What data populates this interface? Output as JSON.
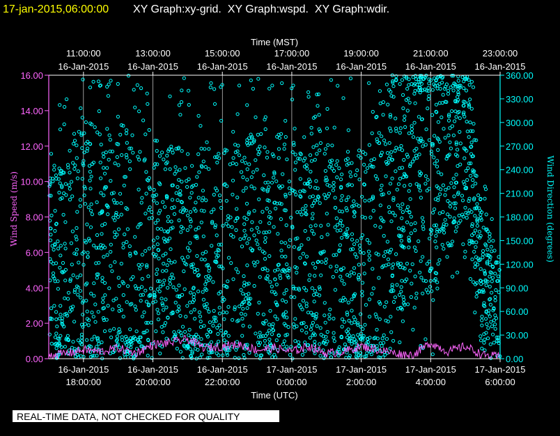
{
  "header": {
    "timestamp": "17-jan-2015,06:00:00",
    "graph_titles": "XY Graph:xy-grid.  XY Graph:wspd.  XY Graph:wdir."
  },
  "footer": {
    "disclaimer": "REAL-TIME DATA, NOT CHECKED FOR QUALITY"
  },
  "colors": {
    "background": "#000000",
    "header_timestamp": "#ffff00",
    "text": "#ffffff",
    "wind_speed": "#ff66ff",
    "wind_direction": "#00ffff",
    "grid": "#ffffff"
  },
  "chart_data": {
    "type": "scatter",
    "title": "",
    "x_top_label": "Time (MST)",
    "x_bottom_label": "Time (UTC)",
    "ylabel_left": "Wind Speed (m/s)",
    "ylabel_right": "Wind Direction (degrees)",
    "ylim_left": [
      0,
      16
    ],
    "ylim_right": [
      0,
      360
    ],
    "xlim_hours_utc": [
      17.0,
      30.0
    ],
    "grid": true,
    "top_ticks": [
      {
        "time": "11:00:00",
        "date": "16-Jan-2015"
      },
      {
        "time": "13:00:00",
        "date": "16-Jan-2015"
      },
      {
        "time": "15:00:00",
        "date": "16-Jan-2015"
      },
      {
        "time": "17:00:00",
        "date": "16-Jan-2015"
      },
      {
        "time": "19:00:00",
        "date": "16-Jan-2015"
      },
      {
        "time": "21:00:00",
        "date": "16-Jan-2015"
      },
      {
        "time": "23:00:00",
        "date": "16-Jan-2015"
      }
    ],
    "bottom_ticks": [
      {
        "date": "16-Jan-2015",
        "time": "18:00:00"
      },
      {
        "date": "16-Jan-2015",
        "time": "20:00:00"
      },
      {
        "date": "16-Jan-2015",
        "time": "22:00:00"
      },
      {
        "date": "17-Jan-2015",
        "time": "0:00:00"
      },
      {
        "date": "17-Jan-2015",
        "time": "2:00:00"
      },
      {
        "date": "17-Jan-2015",
        "time": "4:00:00"
      },
      {
        "date": "17-Jan-2015",
        "time": "6:00:00"
      }
    ],
    "left_ticks": [
      "0.00",
      "2.00",
      "4.00",
      "6.00",
      "8.00",
      "10.00",
      "12.00",
      "14.00",
      "16.00"
    ],
    "right_ticks": [
      "0.00",
      "30.00",
      "60.00",
      "90.00",
      "120.00",
      "150.00",
      "180.00",
      "210.00",
      "240.00",
      "270.00",
      "300.00",
      "330.00",
      "360.00"
    ],
    "series": [
      {
        "name": "wspd",
        "axis": "left",
        "style": "line",
        "color": "#ff66ff",
        "x": [
          17.0,
          17.5,
          18.0,
          18.5,
          19.0,
          19.5,
          20.0,
          20.5,
          21.0,
          21.5,
          22.0,
          22.5,
          23.0,
          23.5,
          24.0,
          24.5,
          25.0,
          25.5,
          26.0,
          26.5,
          27.0,
          27.5,
          28.0,
          28.5,
          29.0,
          29.5,
          30.0
        ],
        "y": [
          0.2,
          0.3,
          0.5,
          0.4,
          0.6,
          0.3,
          0.8,
          0.9,
          1.1,
          0.6,
          0.7,
          0.8,
          0.5,
          0.6,
          0.4,
          0.7,
          0.3,
          0.4,
          0.7,
          0.5,
          0.3,
          0.2,
          0.9,
          0.4,
          0.7,
          0.2,
          0.1
        ]
      },
      {
        "name": "wdir",
        "axis": "right",
        "style": "markers",
        "color": "#00ffff",
        "x": [
          17.0,
          17.5,
          18.0,
          18.5,
          19.0,
          19.5,
          20.0,
          20.5,
          21.0,
          21.5,
          22.0,
          22.5,
          23.0,
          23.5,
          24.0,
          24.5,
          25.0,
          25.5,
          26.0,
          26.5,
          27.0,
          27.5,
          28.0,
          28.5,
          29.0,
          29.5,
          30.0
        ],
        "y": [
          120,
          100,
          150,
          130,
          140,
          110,
          145,
          150,
          130,
          120,
          140,
          130,
          150,
          120,
          160,
          140,
          150,
          110,
          90,
          150,
          200,
          230,
          230,
          250,
          290,
          100,
          80
        ],
        "spread": [
          120,
          150,
          170,
          160,
          170,
          170,
          110,
          120,
          150,
          160,
          140,
          150,
          150,
          170,
          120,
          130,
          140,
          160,
          170,
          180,
          160,
          160,
          150,
          120,
          110,
          80,
          60
        ]
      }
    ]
  }
}
